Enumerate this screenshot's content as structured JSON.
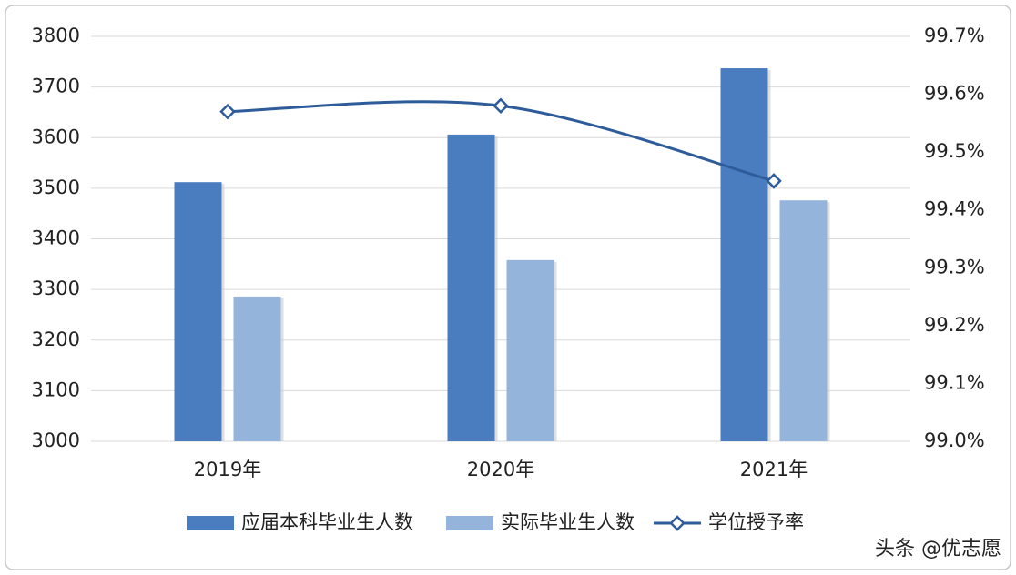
{
  "chart_data": {
    "type": "bar",
    "categories": [
      "2019年",
      "2020年",
      "2021年"
    ],
    "series": [
      {
        "name": "应届本科毕业生人数",
        "type": "bar",
        "color": "#4a7dbf",
        "values": [
          3512,
          3606,
          3737
        ]
      },
      {
        "name": "实际毕业生人数",
        "type": "bar",
        "color": "#95b4dc",
        "values": [
          3286,
          3358,
          3476
        ]
      },
      {
        "name": "学位授予率",
        "type": "line",
        "axis": "y2",
        "color": "#2e5c9a",
        "values": [
          99.57,
          99.58,
          99.45
        ]
      }
    ],
    "ylim": [
      3000,
      3800
    ],
    "yticks": [
      3000,
      3100,
      3200,
      3300,
      3400,
      3500,
      3600,
      3700,
      3800
    ],
    "y2lim": [
      99.0,
      99.7
    ],
    "y2ticks": [
      {
        "value": 99.0,
        "label": "99.0%"
      },
      {
        "value": 99.1,
        "label": "99.1%"
      },
      {
        "value": 99.2,
        "label": "99.2%"
      },
      {
        "value": 99.3,
        "label": "99.3%"
      },
      {
        "value": 99.4,
        "label": "99.4%"
      },
      {
        "value": 99.5,
        "label": "99.5%"
      },
      {
        "value": 99.6,
        "label": "99.6%"
      },
      {
        "value": 99.7,
        "label": "99.7%"
      }
    ],
    "grid": true,
    "legend": "bottom",
    "watermark": "头条 @优志愿"
  }
}
